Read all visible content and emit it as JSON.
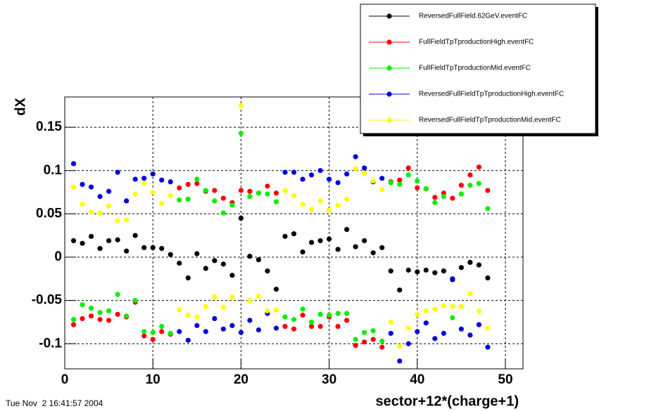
{
  "chart_data": {
    "type": "scatter",
    "x_label": "sector+12*(charge+1)",
    "y_label": "dX",
    "footer": "Tue Nov  2 16:41:57 2004",
    "x": [
      1,
      2,
      3,
      4,
      5,
      6,
      7,
      8,
      9,
      10,
      11,
      12,
      13,
      14,
      15,
      16,
      17,
      18,
      19,
      20,
      21,
      22,
      23,
      24,
      25,
      26,
      27,
      28,
      29,
      30,
      31,
      32,
      33,
      34,
      35,
      36,
      37,
      38,
      39,
      40,
      41,
      42,
      43,
      44,
      45,
      46,
      47,
      48
    ],
    "xlim": [
      0,
      52
    ],
    "xticks": [
      0,
      10,
      20,
      30,
      40,
      50
    ],
    "ylim": [
      -0.129,
      0.185
    ],
    "yticks": [
      -0.1,
      -0.05,
      0,
      0.05,
      0.1,
      0.15
    ],
    "grid": true,
    "legend": "upper right",
    "series": [
      {
        "name": "ReversedFullField.62GeV.eventFC",
        "color": "#000000",
        "values": [
          0.019,
          0.016,
          0.024,
          0.01,
          0.019,
          0.02,
          0.007,
          0.025,
          0.011,
          0.011,
          0.01,
          0.003,
          -0.007,
          -0.024,
          0.004,
          -0.013,
          -0.004,
          -0.008,
          -0.021,
          0.045,
          0.001,
          -0.003,
          -0.016,
          -0.037,
          0.024,
          0.027,
          0.006,
          0.017,
          0.019,
          0.021,
          0.009,
          0.032,
          0.012,
          0.019,
          0.005,
          0.011,
          -0.016,
          -0.038,
          -0.015,
          -0.017,
          -0.015,
          -0.018,
          -0.016,
          -0.026,
          -0.012,
          -0.006,
          -0.009,
          -0.024
        ]
      },
      {
        "name": "FullFieldTpTproductionHigh.eventFC",
        "color": "#ff0000",
        "values": [
          -0.078,
          -0.071,
          -0.068,
          -0.072,
          -0.073,
          -0.066,
          -0.069,
          -0.052,
          -0.091,
          -0.095,
          -0.086,
          -0.089,
          0.08,
          0.084,
          0.085,
          0.076,
          0.077,
          0.068,
          0.063,
          0.077,
          0.076,
          0.074,
          0.082,
          0.074,
          -0.08,
          -0.083,
          -0.067,
          -0.08,
          -0.08,
          -0.069,
          -0.08,
          -0.073,
          -0.102,
          -0.098,
          -0.095,
          -0.104,
          0.087,
          0.089,
          0.103,
          0.08,
          0.079,
          0.069,
          0.074,
          0.068,
          0.083,
          0.095,
          0.104,
          0.077
        ]
      },
      {
        "name": "FullFieldTpTproductionMid.eventFC",
        "color": "#00ee00",
        "values": [
          -0.072,
          -0.055,
          -0.059,
          -0.064,
          -0.062,
          -0.043,
          -0.068,
          -0.05,
          -0.086,
          -0.087,
          -0.08,
          -0.088,
          0.066,
          0.067,
          0.09,
          0.077,
          0.065,
          0.051,
          0.06,
          0.143,
          0.07,
          0.074,
          0.073,
          0.064,
          -0.069,
          -0.072,
          -0.06,
          -0.075,
          -0.066,
          -0.067,
          -0.065,
          -0.065,
          -0.095,
          -0.087,
          -0.085,
          -0.097,
          0.086,
          0.084,
          0.095,
          0.088,
          0.079,
          0.063,
          0.07,
          -0.07,
          0.073,
          0.083,
          0.085,
          0.056
        ]
      },
      {
        "name": "ReversedFullFieldTpTproductionHigh.eventFC",
        "color": "#0000dd",
        "values": [
          0.108,
          0.084,
          0.081,
          0.07,
          0.076,
          0.098,
          0.065,
          0.09,
          0.091,
          0.096,
          0.089,
          0.087,
          -0.086,
          -0.096,
          -0.079,
          -0.086,
          -0.071,
          -0.083,
          -0.079,
          -0.087,
          -0.073,
          -0.084,
          -0.065,
          -0.082,
          0.098,
          0.098,
          0.09,
          0.095,
          0.1,
          0.09,
          0.086,
          0.096,
          0.116,
          0.103,
          0.087,
          0.091,
          -0.088,
          -0.12,
          -0.1,
          -0.086,
          -0.076,
          -0.094,
          -0.088,
          -0.025,
          -0.083,
          -0.09,
          -0.078,
          -0.104
        ]
      },
      {
        "name": "ReversedFullFieldTpTproductionMid.eventFC",
        "color": "#ffff00",
        "values": [
          0.081,
          0.061,
          0.052,
          0.051,
          0.059,
          0.042,
          0.043,
          0.073,
          0.085,
          0.075,
          0.062,
          0.071,
          -0.061,
          -0.067,
          -0.069,
          -0.057,
          -0.046,
          -0.058,
          -0.046,
          0.175,
          -0.05,
          -0.045,
          -0.062,
          -0.061,
          0.077,
          0.071,
          0.061,
          0.055,
          0.065,
          0.054,
          0.06,
          0.067,
          0.102,
          0.097,
          0.088,
          0.078,
          -0.075,
          -0.103,
          -0.082,
          -0.066,
          -0.062,
          -0.06,
          -0.056,
          -0.057,
          -0.057,
          -0.042,
          -0.062,
          -0.082
        ]
      }
    ]
  }
}
